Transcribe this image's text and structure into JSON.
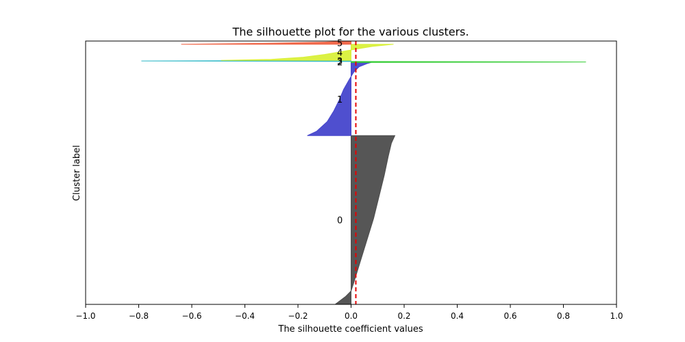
{
  "chart_data": {
    "type": "area",
    "title": "The silhouette plot for the various clusters.",
    "xlabel": "The silhouette coefficient values",
    "ylabel": "Cluster label",
    "xlim": [
      -1.0,
      1.0
    ],
    "x_ticks": [
      "−1.0",
      "−0.8",
      "−0.6",
      "−0.4",
      "−0.2",
      "0.0",
      "0.2",
      "0.4",
      "0.6",
      "0.8",
      "1.0"
    ],
    "x_tick_values": [
      -1.0,
      -0.8,
      -0.6,
      -0.4,
      -0.2,
      0.0,
      0.2,
      0.4,
      0.6,
      0.8,
      1.0
    ],
    "y_ticks": [],
    "ylim": [
      0,
      490
    ],
    "grid": false,
    "average_silhouette_score": 0.018,
    "average_line_color": "#e60000",
    "clusters": [
      {
        "label": "0",
        "color": "#4d4d4d",
        "y_lower": 0,
        "y_upper": 314,
        "profile": [
          [
            0,
            -0.06
          ],
          [
            15,
            -0.02
          ],
          [
            25,
            0.0
          ],
          [
            40,
            0.01
          ],
          [
            80,
            0.035
          ],
          [
            120,
            0.06
          ],
          [
            160,
            0.085
          ],
          [
            200,
            0.105
          ],
          [
            240,
            0.125
          ],
          [
            275,
            0.14
          ],
          [
            300,
            0.152
          ],
          [
            314,
            0.165
          ]
        ]
      },
      {
        "label": "1",
        "color": "#4646cc",
        "y_lower": 314,
        "y_upper": 450,
        "profile": [
          [
            314,
            -0.165
          ],
          [
            322,
            -0.13
          ],
          [
            340,
            -0.09
          ],
          [
            360,
            -0.065
          ],
          [
            380,
            -0.045
          ],
          [
            400,
            -0.028
          ],
          [
            420,
            -0.005
          ],
          [
            432,
            0.01
          ],
          [
            442,
            0.03
          ],
          [
            448,
            0.06
          ],
          [
            450,
            0.075
          ]
        ]
      },
      {
        "label": "2",
        "color": "#33cc33",
        "y_lower": 450,
        "y_upper": 452,
        "profile": [
          [
            450,
            0.0
          ],
          [
            451,
            0.885
          ],
          [
            452,
            0.0
          ]
        ]
      },
      {
        "label": "3",
        "color": "#2eb8c7",
        "y_lower": 452,
        "y_upper": 454,
        "profile": [
          [
            452,
            0.0
          ],
          [
            453,
            -0.79
          ],
          [
            454,
            0.0
          ]
        ]
      },
      {
        "label": "4",
        "color": "#d9f03a",
        "y_lower": 454,
        "y_upper": 484,
        "profile": [
          [
            454,
            -0.49
          ],
          [
            456,
            -0.3
          ],
          [
            460,
            -0.18
          ],
          [
            465,
            -0.1
          ],
          [
            470,
            -0.04
          ],
          [
            475,
            0.02
          ],
          [
            480,
            0.08
          ],
          [
            484,
            0.16
          ]
        ]
      },
      {
        "label": "5",
        "color": "#f06446",
        "y_lower": 484,
        "y_upper": 490,
        "profile": [
          [
            484,
            -0.64
          ],
          [
            485,
            -0.45
          ],
          [
            486,
            -0.3
          ],
          [
            487,
            -0.2
          ],
          [
            488,
            -0.1
          ],
          [
            489,
            -0.05
          ],
          [
            490,
            0.0
          ]
        ]
      }
    ]
  }
}
